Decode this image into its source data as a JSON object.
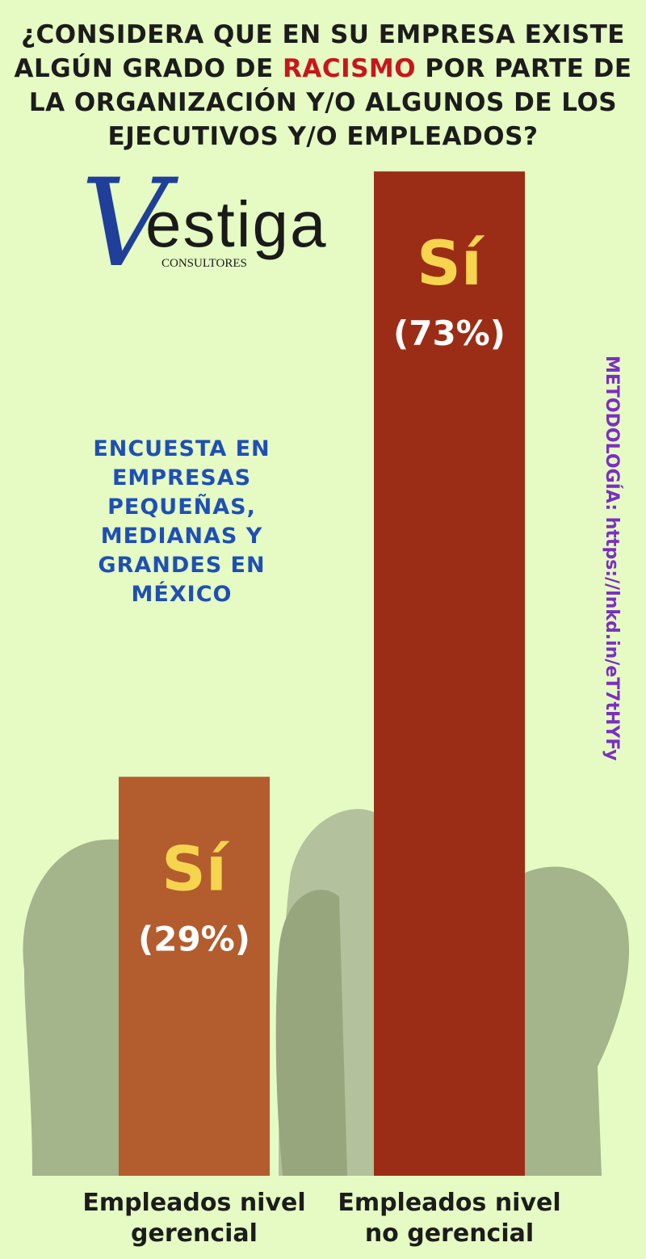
{
  "logo": {
    "initial": "V",
    "name": "estiga",
    "tagline": "CONSULTORES"
  },
  "chart_data": {
    "type": "bar",
    "title": [
      "¿CONSIDERA QUE EN SU EMPRESA EXISTE ALGÚN GRADO DE ",
      "RACISMO",
      " POR PARTE DE LA ORGANIZACIÓN Y/O ALGUNOS DE LOS EJECUTIVOS Y/O EMPLEADOS?"
    ],
    "subtitle": "ENCUESTA EN EMPRESAS PEQUEÑAS, MEDIANAS Y GRANDES EN MÉXICO",
    "note": "METODOLOGÍA: https://lnkd.in/eT7tHYFy",
    "categories": [
      "Empleados nivel gerencial",
      "Empleados nivel no gerencial"
    ],
    "values": [
      29,
      73
    ],
    "value_labels": [
      "(29%)",
      "(73%)"
    ],
    "annotations": [
      "Sí",
      "Sí"
    ],
    "colors": [
      "#b35c2e",
      "#9b2d16"
    ],
    "ylim": [
      0,
      80
    ]
  }
}
